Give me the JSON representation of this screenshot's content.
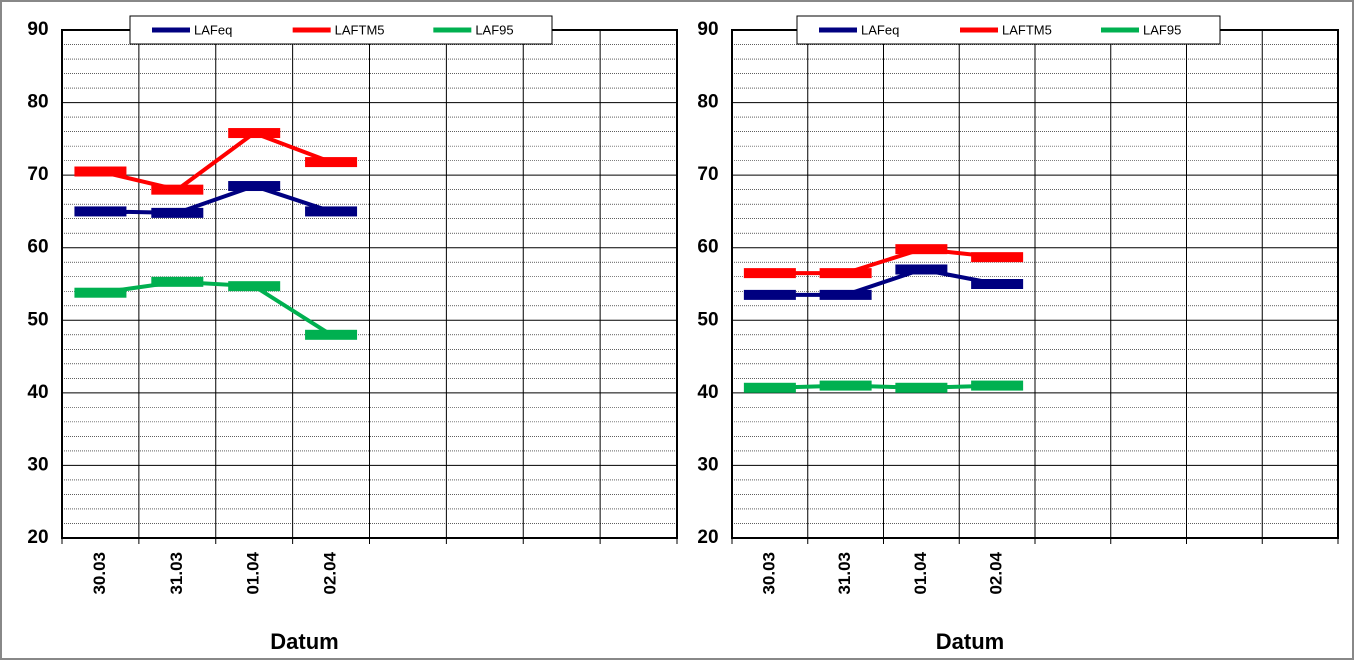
{
  "chart_data": [
    {
      "type": "line",
      "categories": [
        "30.03",
        "31.03",
        "01.04",
        "02.04",
        null,
        null,
        null,
        null
      ],
      "x_label": "Datum",
      "ylim": [
        20,
        90
      ],
      "yticks": [
        20,
        30,
        40,
        50,
        60,
        70,
        80,
        90
      ],
      "minor_yticks": [
        22,
        24,
        26,
        28,
        32,
        34,
        36,
        38,
        42,
        44,
        46,
        48,
        52,
        54,
        56,
        58,
        62,
        64,
        66,
        68,
        72,
        74,
        76,
        78,
        82,
        84,
        86,
        88
      ],
      "grid": true,
      "legend": "top",
      "series": [
        {
          "name": "LAFeq",
          "color": "#000080",
          "values": [
            65,
            64.8,
            68.5,
            65,
            null,
            null,
            null,
            null
          ]
        },
        {
          "name": "LAFTM5",
          "color": "#ff0000",
          "values": [
            70.5,
            68,
            75.8,
            71.8,
            null,
            null,
            null,
            null
          ]
        },
        {
          "name": "LAF95",
          "color": "#00b050",
          "values": [
            53.8,
            55.3,
            54.7,
            48,
            null,
            null,
            null,
            null
          ]
        }
      ]
    },
    {
      "type": "line",
      "categories": [
        "30.03",
        "31.03",
        "01.04",
        "02.04",
        null,
        null,
        null,
        null
      ],
      "x_label": "Datum",
      "ylim": [
        20,
        90
      ],
      "yticks": [
        20,
        30,
        40,
        50,
        60,
        70,
        80,
        90
      ],
      "minor_yticks": [
        22,
        24,
        26,
        28,
        32,
        34,
        36,
        38,
        42,
        44,
        46,
        48,
        52,
        54,
        56,
        58,
        62,
        64,
        66,
        68,
        72,
        74,
        76,
        78,
        82,
        84,
        86,
        88
      ],
      "grid": true,
      "legend": "top",
      "series": [
        {
          "name": "LAFeq",
          "color": "#000080",
          "values": [
            53.5,
            53.5,
            57,
            55,
            null,
            null,
            null,
            null
          ]
        },
        {
          "name": "LAFTM5",
          "color": "#ff0000",
          "values": [
            56.5,
            56.5,
            59.8,
            58.7,
            null,
            null,
            null,
            null
          ]
        },
        {
          "name": "LAF95",
          "color": "#00b050",
          "values": [
            40.7,
            41,
            40.7,
            41,
            null,
            null,
            null,
            null
          ]
        }
      ]
    }
  ]
}
